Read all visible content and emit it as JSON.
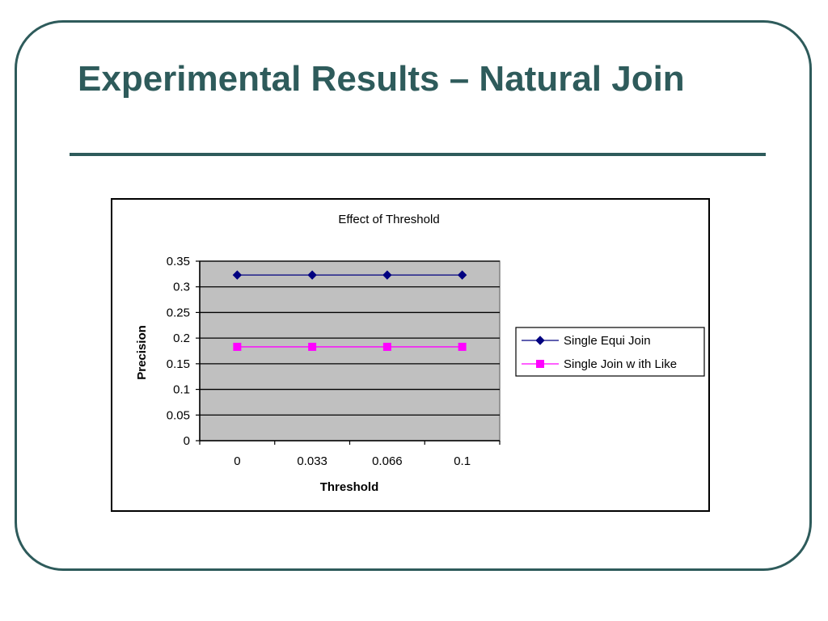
{
  "slide": {
    "title": "Experimental Results – Natural Join"
  },
  "colors": {
    "title": "#2e5b5b",
    "frame": "#2e5b5b",
    "plot_background": "#c0c0c0"
  },
  "chart_data": {
    "type": "line",
    "title": "Effect of Threshold",
    "xlabel": "Threshold",
    "ylabel": "Precision",
    "categories": [
      "0",
      "0.033",
      "0.066",
      "0.1"
    ],
    "ylim": [
      0,
      0.35
    ],
    "yticks": [
      "0",
      "0.05",
      "0.1",
      "0.15",
      "0.2",
      "0.25",
      "0.3",
      "0.35"
    ],
    "grid": true,
    "legend_position": "right",
    "series": [
      {
        "name": "Single Equi Join",
        "values": [
          0.323,
          0.323,
          0.323,
          0.323
        ],
        "color": "#000080",
        "marker": "diamond"
      },
      {
        "name": "Single Join w ith Like",
        "values": [
          0.183,
          0.183,
          0.183,
          0.183
        ],
        "color": "#ff00ff",
        "marker": "square"
      }
    ]
  }
}
